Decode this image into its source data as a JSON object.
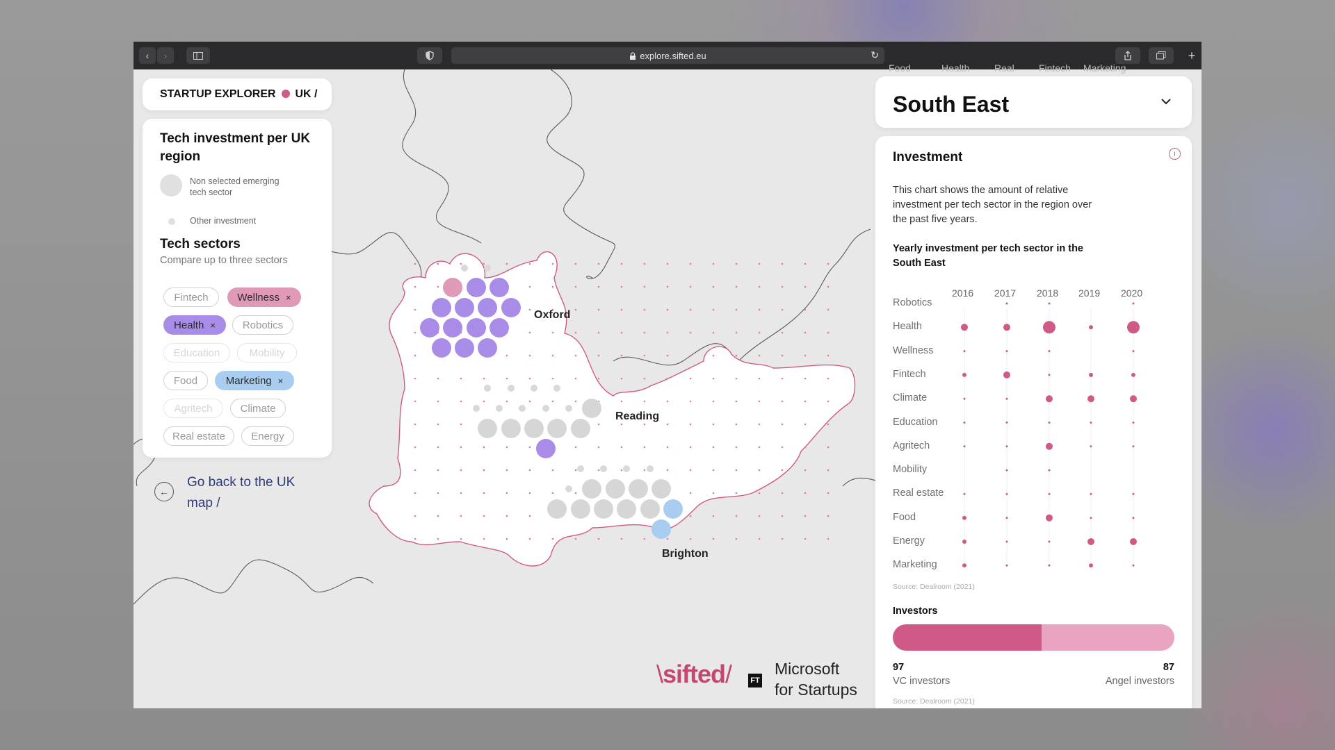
{
  "browser": {
    "url": "explore.sifted.eu"
  },
  "header": {
    "brand": "STARTUP EXPLORER",
    "region_path": "UK /"
  },
  "legend": {
    "title": "Tech investment per UK region",
    "items": [
      {
        "label": "Non selected emerging tech sector"
      },
      {
        "label": "Other investment"
      }
    ]
  },
  "sectors": {
    "title": "Tech sectors",
    "subtitle": "Compare up to three sectors",
    "remove_symbol": "×",
    "pills": [
      {
        "label": "Fintech",
        "state": "available"
      },
      {
        "label": "Wellness",
        "state": "selected",
        "color": "#e09ab7"
      },
      {
        "label": "Health",
        "state": "selected",
        "color": "#a88ce8"
      },
      {
        "label": "Robotics",
        "state": "available"
      },
      {
        "label": "Education",
        "state": "disabled"
      },
      {
        "label": "Mobility",
        "state": "disabled"
      },
      {
        "label": "Food",
        "state": "available"
      },
      {
        "label": "Marketing",
        "state": "selected",
        "color": "#a9cdf0"
      },
      {
        "label": "Agritech",
        "state": "disabled"
      },
      {
        "label": "Climate",
        "state": "available"
      },
      {
        "label": "Real estate",
        "state": "available"
      },
      {
        "label": "Energy",
        "state": "available"
      }
    ]
  },
  "back_link": {
    "line1": "Go back to the UK",
    "line2": "map /"
  },
  "map": {
    "city_labels": [
      "Oxford",
      "Reading",
      "Brighton"
    ]
  },
  "branding": {
    "sifted": "sifted",
    "ft": "FT",
    "ms_line1": "Microsoft",
    "ms_line2": "for Startups"
  },
  "right_panel": {
    "faded_tabs": [
      "Food",
      "Health",
      "Real",
      "Fintech",
      "Marketing"
    ],
    "region": "South East",
    "investment_title": "Investment",
    "description": [
      "This chart shows the amount of relative",
      "investment per tech sector in the region over",
      "the past five years."
    ],
    "chart_title": [
      "Yearly investment per tech sector in the",
      "South East"
    ],
    "source": "Source: Dealroom (2021)",
    "investors_title": "Investors",
    "investors_source": "Source: Dealroom (2021)"
  },
  "colors": {
    "accent_pink": "#d05a87",
    "wellness": "#e09ab7",
    "health": "#a88ce8",
    "marketing": "#a9cdf0",
    "other": "#d6d6d6"
  },
  "chart_data": [
    {
      "type": "scatter",
      "title": "Yearly investment per tech sector in the South East",
      "x": [
        "2016",
        "2017",
        "2018",
        "2019",
        "2020"
      ],
      "categories": [
        "Robotics",
        "Health",
        "Wellness",
        "Fintech",
        "Climate",
        "Education",
        "Agritech",
        "Mobility",
        "Real estate",
        "Food",
        "Energy",
        "Marketing"
      ],
      "size_levels": [
        [
          0,
          1,
          1,
          0,
          1
        ],
        [
          3,
          3,
          5,
          2,
          5
        ],
        [
          1,
          1,
          1,
          0,
          1
        ],
        [
          2,
          3,
          1,
          2,
          2
        ],
        [
          1,
          1,
          3,
          3,
          3
        ],
        [
          1,
          1,
          1,
          1,
          1
        ],
        [
          1,
          1,
          3,
          1,
          1
        ],
        [
          0,
          1,
          1,
          0,
          0
        ],
        [
          1,
          1,
          1,
          1,
          1
        ],
        [
          2,
          1,
          3,
          1,
          1
        ],
        [
          2,
          1,
          1,
          3,
          3
        ],
        [
          2,
          1,
          1,
          2,
          1
        ]
      ],
      "grid": true
    },
    {
      "type": "bar",
      "orientation": "horizontal-stacked",
      "categories": [
        "VC investors",
        "Angel investors"
      ],
      "values": [
        97,
        87
      ],
      "colors": [
        "#d05a87",
        "#e8a4c0"
      ]
    }
  ]
}
